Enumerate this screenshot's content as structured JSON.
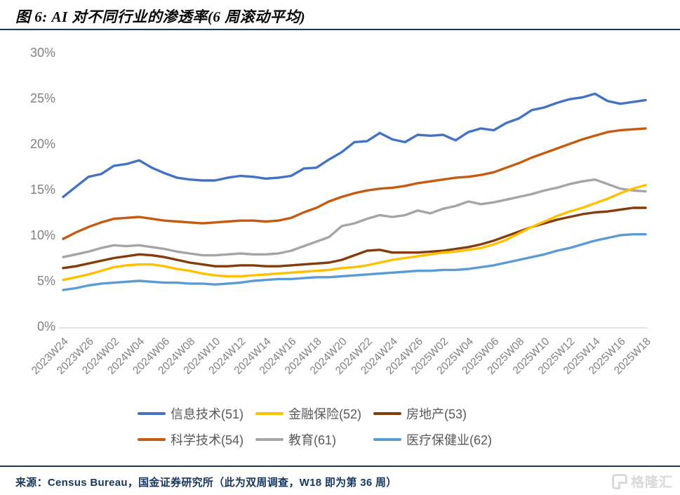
{
  "header": {
    "title": "图 6: AI 对不同行业的渗透率(6 周滚动平均)"
  },
  "footer": {
    "source": "来源：Census Bureau，国金证券研究所（此为双周调查，W18 即为第 36 周）",
    "watermark": "格隆汇"
  },
  "colors": {
    "rule": "#17375E",
    "axis_text": "#808080",
    "axis_line": "#d9d9d9",
    "legend_text": "#595959"
  },
  "chart_data": {
    "type": "line",
    "title": "图 6: AI 对不同行业的渗透率(6 周滚动平均)",
    "xlabel": "",
    "ylabel": "",
    "ylim": [
      0,
      30
    ],
    "y_tick_labels": [
      "0%",
      "5%",
      "10%",
      "15%",
      "20%",
      "25%",
      "30%"
    ],
    "grid": false,
    "legend_position": "bottom",
    "note": "biweekly survey waves; x tick labels mark every second data point",
    "x_tick_labels": [
      "2023W24",
      "2023W26",
      "2024W02",
      "2024W04",
      "2024W06",
      "2024W08",
      "2024W10",
      "2024W12",
      "2024W14",
      "2024W16",
      "2024W18",
      "2024W20",
      "2024W22",
      "2024W24",
      "2024W26",
      "2025W02",
      "2025W04",
      "2025W06",
      "2025W08",
      "2025W10",
      "2025W12",
      "2025W14",
      "2025W16",
      "2025W18"
    ],
    "points_per_series": 47,
    "series": [
      {
        "name": "信息技术(51)",
        "color": "#4472C4",
        "values": [
          14.2,
          15.3,
          16.4,
          16.7,
          17.6,
          17.8,
          18.2,
          17.4,
          16.8,
          16.3,
          16.1,
          16.0,
          16.0,
          16.3,
          16.5,
          16.4,
          16.2,
          16.3,
          16.5,
          17.3,
          17.4,
          18.3,
          19.1,
          20.2,
          20.3,
          21.2,
          20.5,
          20.2,
          21.0,
          20.9,
          21.0,
          20.4,
          21.3,
          21.7,
          21.5,
          22.3,
          22.8,
          23.7,
          24.0,
          24.5,
          24.9,
          25.1,
          25.5,
          24.7,
          24.4,
          24.6,
          24.8
        ]
      },
      {
        "name": "金融保险(52)",
        "color": "#FFC000",
        "values": [
          5.1,
          5.4,
          5.7,
          6.1,
          6.5,
          6.7,
          6.8,
          6.8,
          6.6,
          6.3,
          6.1,
          5.8,
          5.6,
          5.5,
          5.5,
          5.6,
          5.7,
          5.8,
          5.9,
          6.0,
          6.1,
          6.2,
          6.4,
          6.5,
          6.7,
          7.0,
          7.3,
          7.5,
          7.7,
          7.9,
          8.1,
          8.2,
          8.4,
          8.6,
          9.0,
          9.5,
          10.2,
          10.9,
          11.5,
          12.1,
          12.6,
          13.0,
          13.5,
          14.0,
          14.6,
          15.1,
          15.5
        ]
      },
      {
        "name": "房地产(53)",
        "color": "#843C0C",
        "values": [
          6.4,
          6.6,
          6.9,
          7.2,
          7.5,
          7.7,
          7.9,
          7.8,
          7.6,
          7.3,
          7.0,
          6.8,
          6.6,
          6.6,
          6.7,
          6.7,
          6.6,
          6.6,
          6.7,
          6.8,
          6.9,
          7.0,
          7.3,
          7.8,
          8.3,
          8.4,
          8.1,
          8.1,
          8.1,
          8.2,
          8.3,
          8.5,
          8.7,
          9.0,
          9.4,
          9.9,
          10.4,
          10.9,
          11.3,
          11.7,
          12.0,
          12.3,
          12.5,
          12.6,
          12.8,
          13.0,
          13.0
        ]
      },
      {
        "name": "科学技术(54)",
        "color": "#C55A11",
        "values": [
          9.6,
          10.3,
          10.9,
          11.4,
          11.8,
          11.9,
          12.0,
          11.8,
          11.6,
          11.5,
          11.4,
          11.3,
          11.4,
          11.5,
          11.6,
          11.6,
          11.5,
          11.6,
          11.9,
          12.5,
          13.0,
          13.7,
          14.2,
          14.6,
          14.9,
          15.1,
          15.2,
          15.4,
          15.7,
          15.9,
          16.1,
          16.3,
          16.4,
          16.6,
          16.9,
          17.4,
          17.9,
          18.5,
          19.0,
          19.5,
          20.0,
          20.5,
          20.9,
          21.3,
          21.5,
          21.6,
          21.7
        ]
      },
      {
        "name": "教育(61)",
        "color": "#A5A5A5",
        "values": [
          7.6,
          7.9,
          8.2,
          8.6,
          8.9,
          8.8,
          8.9,
          8.7,
          8.5,
          8.2,
          8.0,
          7.8,
          7.8,
          7.9,
          8.0,
          7.9,
          7.9,
          8.0,
          8.3,
          8.8,
          9.3,
          9.8,
          11.0,
          11.3,
          11.8,
          12.2,
          12.0,
          12.2,
          12.7,
          12.4,
          12.9,
          13.2,
          13.7,
          13.4,
          13.6,
          13.9,
          14.2,
          14.5,
          14.9,
          15.2,
          15.6,
          15.9,
          16.1,
          15.6,
          15.1,
          14.9,
          14.8
        ]
      },
      {
        "name": "医疗保健业(62)",
        "color": "#5B9BD5",
        "values": [
          4.0,
          4.2,
          4.5,
          4.7,
          4.8,
          4.9,
          5.0,
          4.9,
          4.8,
          4.8,
          4.7,
          4.7,
          4.6,
          4.7,
          4.8,
          5.0,
          5.1,
          5.2,
          5.2,
          5.3,
          5.4,
          5.4,
          5.5,
          5.6,
          5.7,
          5.8,
          5.9,
          6.0,
          6.1,
          6.1,
          6.2,
          6.2,
          6.3,
          6.5,
          6.7,
          7.0,
          7.3,
          7.6,
          7.9,
          8.3,
          8.6,
          9.0,
          9.4,
          9.7,
          10.0,
          10.1,
          10.1
        ]
      }
    ]
  }
}
